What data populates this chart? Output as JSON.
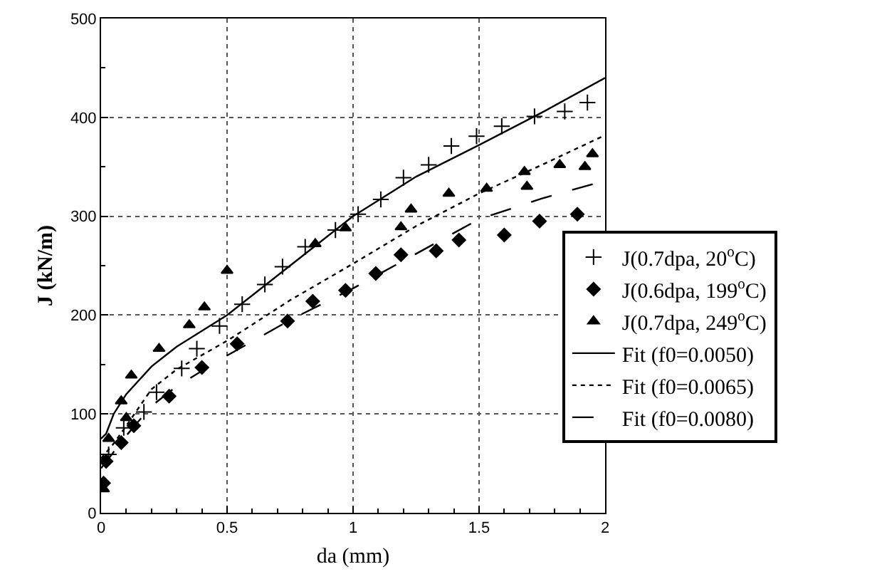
{
  "chart_data": {
    "type": "scatter",
    "xlabel": "da (mm)",
    "ylabel": "J (kN/m)",
    "xlim": [
      0,
      2
    ],
    "xticks": [
      0,
      0.5,
      1,
      1.5,
      2
    ],
    "ylim": [
      0,
      500
    ],
    "yticks": [
      0,
      100,
      200,
      300,
      400,
      500
    ],
    "grid": true,
    "legend": "right",
    "series": [
      {
        "name": "J(0.7dpa, 20$^{o}$C)",
        "marker": "cross",
        "color": "#000000",
        "x": [
          0.03,
          0.09,
          0.17,
          0.22,
          0.32,
          0.38,
          0.47,
          0.56,
          0.65,
          0.72,
          0.81,
          0.93,
          1.02,
          1.11,
          1.2,
          1.3,
          1.39,
          1.49,
          1.59,
          1.72,
          1.84,
          1.93
        ],
        "values": [
          59,
          86,
          102,
          122,
          146,
          166,
          189,
          211,
          231,
          249,
          269,
          286,
          302,
          317,
          339,
          352,
          371,
          381,
          391,
          401,
          406,
          415
        ]
      },
      {
        "name": "J(0.6dpa, 199$^{o}$C)",
        "marker": "diamond",
        "color": "#000000",
        "x": [
          0.01,
          0.02,
          0.08,
          0.13,
          0.27,
          0.4,
          0.54,
          0.74,
          0.84,
          0.97,
          1.09,
          1.19,
          1.33,
          1.42,
          1.6,
          1.74,
          1.89
        ],
        "values": [
          30,
          52,
          71,
          88,
          118,
          147,
          171,
          194,
          214,
          225,
          242,
          261,
          265,
          276,
          281,
          295,
          302
        ]
      },
      {
        "name": "J(0.7dpa, 249$^{o}$C)",
        "marker": "triangle",
        "color": "#000000",
        "x": [
          0.01,
          0.03,
          0.08,
          0.1,
          0.12,
          0.23,
          0.35,
          0.41,
          0.5,
          0.85,
          0.97,
          1.19,
          1.23,
          1.38,
          1.53,
          1.68,
          1.69,
          1.82,
          1.92,
          1.95
        ],
        "values": [
          24,
          75,
          113,
          96,
          139,
          166,
          190,
          208,
          245,
          272,
          288,
          289,
          307,
          323,
          328,
          345,
          330,
          352,
          350,
          363
        ]
      },
      {
        "name": "Fit (f0=0.0050)",
        "type": "line",
        "line_style": "solid",
        "color": "#000000",
        "x": [
          0,
          0.02,
          0.05,
          0.1,
          0.2,
          0.3,
          0.5,
          0.75,
          1,
          1.25,
          1.5,
          1.75,
          2
        ],
        "values": [
          75,
          80,
          100,
          120,
          148,
          168,
          200,
          250,
          300,
          340,
          372,
          405,
          440
        ]
      },
      {
        "name": "Fit (f0=0.0065)",
        "type": "line",
        "line_style": "dotted",
        "color": "#000000",
        "x": [
          0,
          0.05,
          0.1,
          0.2,
          0.3,
          0.5,
          0.75,
          1,
          1.25,
          1.5,
          1.75,
          2
        ],
        "values": [
          55,
          70,
          88,
          125,
          145,
          174,
          215,
          252,
          290,
          323,
          352,
          382
        ]
      },
      {
        "name": "Fit (f0=0.0080)",
        "type": "line",
        "line_style": "dashed",
        "color": "#000000",
        "x": [
          0,
          0.1,
          0.2,
          0.3,
          0.5,
          0.75,
          1,
          1.25,
          1.5,
          1.75,
          2
        ],
        "values": [
          45,
          78,
          108,
          128,
          159,
          195,
          227,
          262,
          297,
          318,
          336
        ]
      }
    ]
  }
}
